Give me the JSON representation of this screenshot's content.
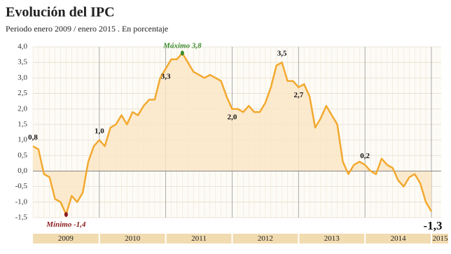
{
  "chart_data": {
    "type": "line",
    "title": "Evolución del IPC",
    "subtitle": "Periodo enero 2009 / enero 2015 . En porcentaje",
    "x_band_labels": [
      "2009",
      "2010",
      "2011",
      "2012",
      "2013",
      "2014",
      "2015"
    ],
    "values": [
      0.8,
      0.7,
      -0.1,
      -0.2,
      -0.9,
      -1.0,
      -1.4,
      -0.8,
      -1.0,
      -0.7,
      0.3,
      0.8,
      1.0,
      0.8,
      1.4,
      1.5,
      1.8,
      1.5,
      1.9,
      1.8,
      2.1,
      2.3,
      2.3,
      3.0,
      3.3,
      3.6,
      3.6,
      3.8,
      3.5,
      3.2,
      3.1,
      3.0,
      3.1,
      3.0,
      2.9,
      2.4,
      2.0,
      2.0,
      1.9,
      2.1,
      1.9,
      1.9,
      2.2,
      2.7,
      3.4,
      3.5,
      2.9,
      2.9,
      2.7,
      2.8,
      2.4,
      1.4,
      1.7,
      2.1,
      1.8,
      1.5,
      0.3,
      -0.1,
      0.2,
      0.3,
      0.2,
      0.0,
      -0.1,
      0.4,
      0.2,
      0.1,
      -0.3,
      -0.5,
      -0.2,
      -0.1,
      -0.4,
      -1.0,
      -1.3
    ],
    "value_labels": [
      "0,8",
      null,
      null,
      null,
      null,
      null,
      "Mínimo  -1,4",
      null,
      null,
      null,
      null,
      null,
      "1,0",
      null,
      null,
      null,
      null,
      null,
      null,
      null,
      null,
      null,
      null,
      null,
      "3,3",
      null,
      null,
      "Máximo 3,8",
      null,
      null,
      null,
      null,
      null,
      null,
      null,
      null,
      "2,0",
      null,
      null,
      null,
      null,
      null,
      null,
      null,
      null,
      "3,5",
      null,
      null,
      "2,7",
      null,
      null,
      null,
      null,
      null,
      null,
      null,
      null,
      null,
      null,
      null,
      "0,2",
      null,
      null,
      null,
      null,
      null,
      null,
      null,
      null,
      null,
      null,
      null,
      "-1,3"
    ],
    "color": "#f2a92f",
    "fill_color": "#fbe6c4",
    "max_color": "#3b8a2b",
    "min_color": "#8c1b1b",
    "ylim": [
      -1.5,
      4.0
    ],
    "yticks": [
      {
        "value": -1.5,
        "label": "-1,5"
      },
      {
        "value": -1.0,
        "label": "-1,0"
      },
      {
        "value": -0.5,
        "label": "-0,5"
      },
      {
        "value": 0.0,
        "label": "0,0"
      },
      {
        "value": 0.5,
        "label": "0,5"
      },
      {
        "value": 1.0,
        "label": "1,0"
      },
      {
        "value": 1.5,
        "label": "1,5"
      },
      {
        "value": 2.0,
        "label": "2,0"
      },
      {
        "value": 2.5,
        "label": "2,5"
      },
      {
        "value": 3.0,
        "label": "3,0"
      },
      {
        "value": 3.5,
        "label": "3,5"
      },
      {
        "value": 4.0,
        "label": "4,0"
      }
    ],
    "grid": true
  }
}
